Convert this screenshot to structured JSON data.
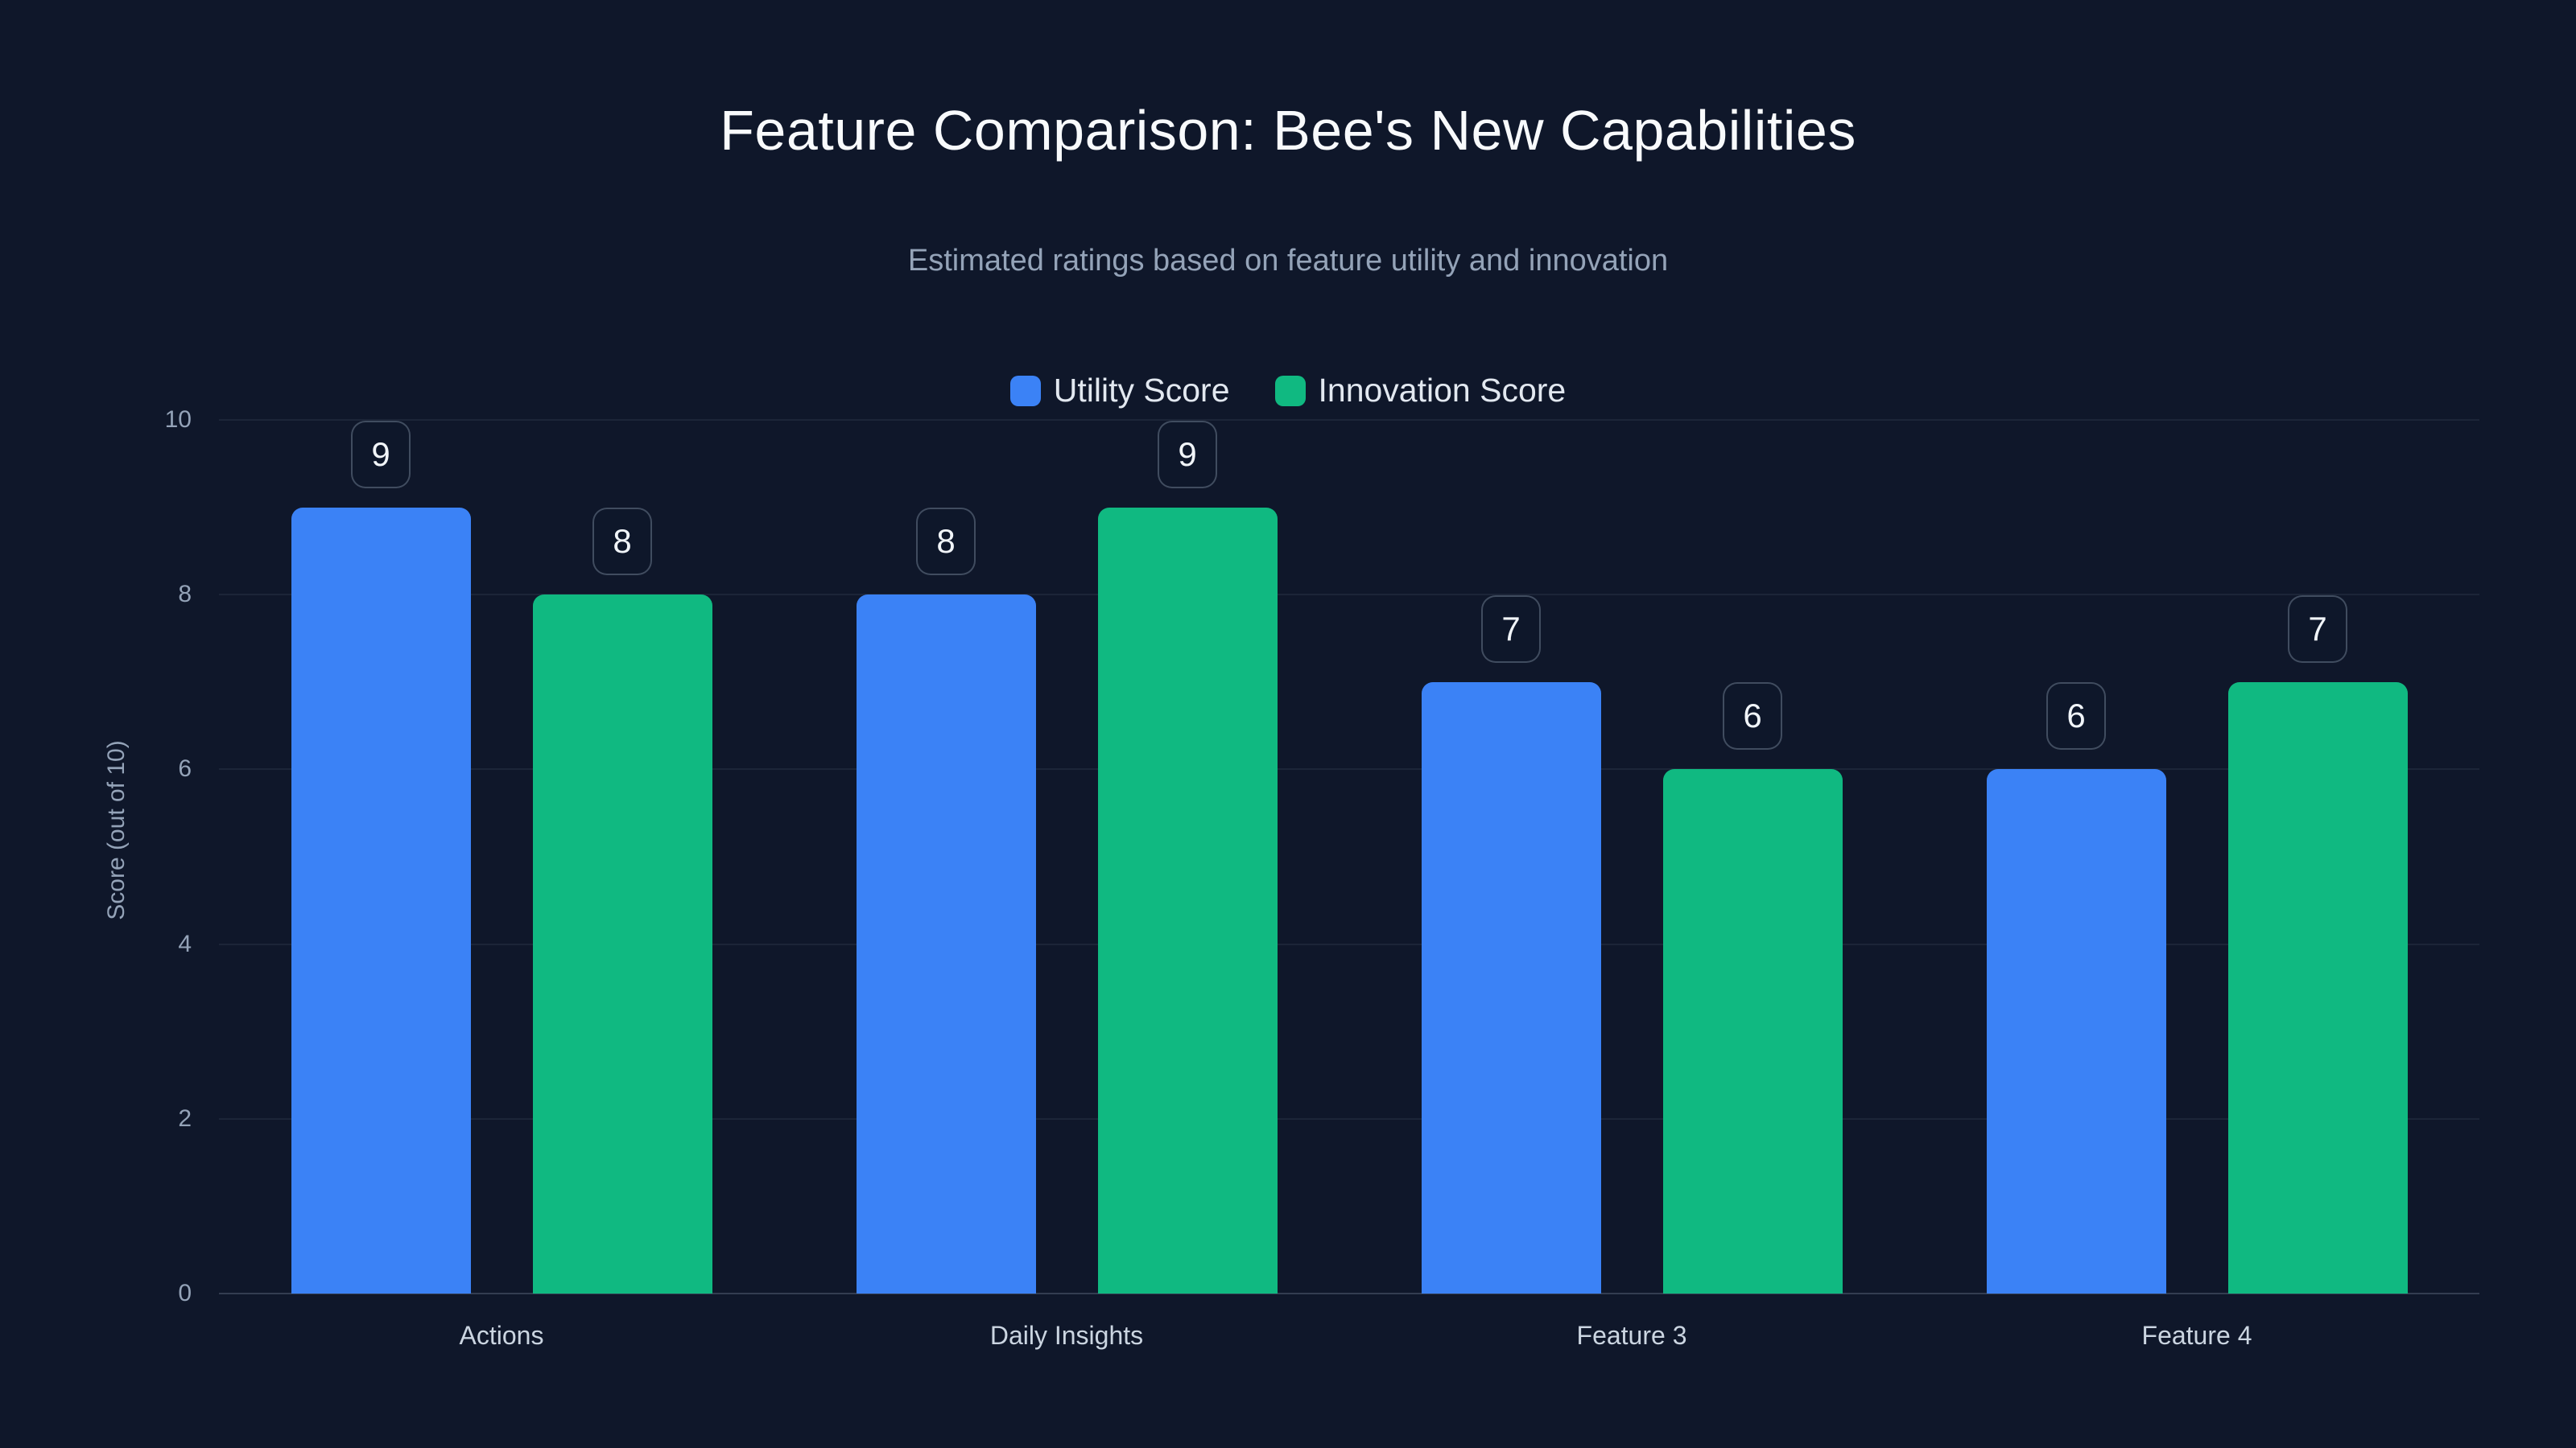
{
  "page": {
    "background": "#0f172a"
  },
  "header": {
    "title": "Feature Comparison: Bee's New Capabilities",
    "subtitle": "Estimated ratings based on feature utility and innovation"
  },
  "chart_data": {
    "type": "bar",
    "title": "Feature Comparison: Bee's New Capabilities",
    "subtitle": "Estimated ratings based on feature utility and innovation",
    "categories": [
      "Actions",
      "Daily Insights",
      "Feature 3",
      "Feature 4"
    ],
    "series": [
      {
        "name": "Utility Score",
        "color": "#3b82f6",
        "values": [
          9,
          8,
          7,
          6
        ]
      },
      {
        "name": "Innovation Score",
        "color": "#10b981",
        "values": [
          8,
          9,
          6,
          7
        ]
      }
    ],
    "xlabel": "",
    "ylabel": "Score (out of 10)",
    "ylim": [
      0,
      10
    ],
    "yticks": [
      0,
      2,
      4,
      6,
      8,
      10
    ],
    "grid": true,
    "legend_position": "top-center",
    "value_labels": true,
    "value_label_style": "rounded-outline-box",
    "text_colors": {
      "title": "#f8fafc",
      "subtitle": "#94a3b8",
      "ticks": "#94a3b8",
      "category_labels": "#cbd5e1",
      "legend_labels": "#e2e8f0",
      "value_labels": "#f1f5f9"
    }
  }
}
